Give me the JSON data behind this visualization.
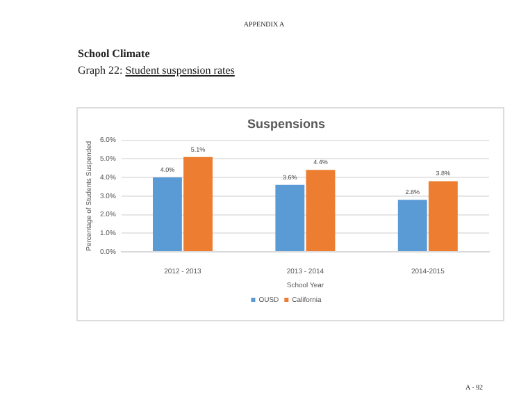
{
  "chart_data": {
    "type": "bar",
    "title": "Suspensions",
    "xlabel": "School Year",
    "ylabel": "Percentage of Students Suspended",
    "annotations": [
      "APPENDIX A",
      "School Climate",
      "Graph 22: Student suspension rates",
      "A - 92"
    ],
    "categories": [
      "2012 - 2013",
      "2013 - 2014",
      "2014-2015"
    ],
    "series": [
      {
        "name": "OUSD",
        "color": "#5b9bd5",
        "values": [
          4.0,
          3.6,
          2.8
        ],
        "value_labels": [
          "4.0%",
          "3.6%",
          "2.8%"
        ]
      },
      {
        "name": "California",
        "color": "#ed7d31",
        "values": [
          5.1,
          4.4,
          3.8
        ],
        "value_labels": [
          "5.1%",
          "4.4%",
          "3.8%"
        ]
      }
    ],
    "ylim": [
      0,
      6
    ],
    "yticks": [
      {
        "value": 0,
        "label": "0.0%"
      },
      {
        "value": 1,
        "label": "1.0%"
      },
      {
        "value": 2,
        "label": "2.0%"
      },
      {
        "value": 3,
        "label": "3.0%"
      },
      {
        "value": 4,
        "label": "4.0%"
      },
      {
        "value": 5,
        "label": "5.0%"
      },
      {
        "value": 6,
        "label": "6.0%"
      }
    ],
    "grid": "y",
    "legend": "bottom"
  }
}
